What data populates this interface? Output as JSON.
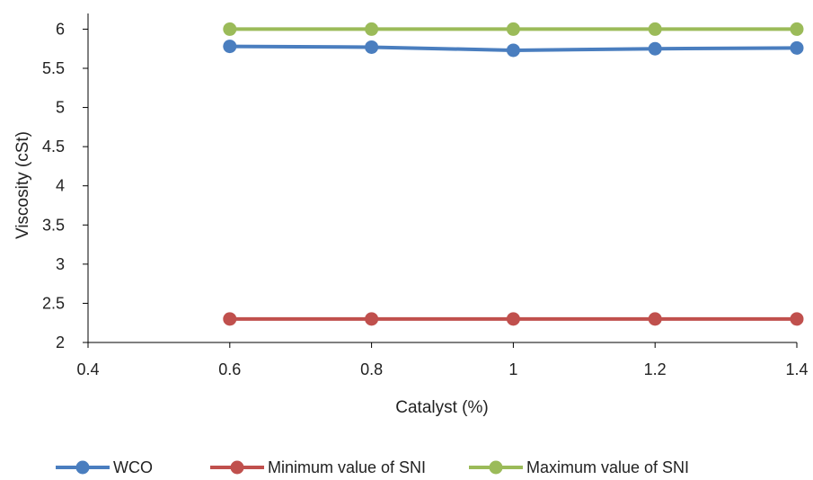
{
  "chart_data": {
    "type": "line",
    "title": "",
    "xlabel": "Catalyst (%)",
    "ylabel": "Viscosity (cSt)",
    "xlim": [
      0.4,
      1.4
    ],
    "ylim": [
      2,
      6.2
    ],
    "xticks": [
      0.4,
      0.6,
      0.8,
      1.0,
      1.2,
      1.4
    ],
    "xtick_labels": [
      "0.4",
      "0.6",
      "0.8",
      "1",
      "1.2",
      "1.4"
    ],
    "yticks": [
      2,
      2.5,
      3,
      3.5,
      4,
      4.5,
      5,
      5.5,
      6
    ],
    "ytick_labels": [
      "2",
      "2.5",
      "3",
      "3.5",
      "4",
      "4.5",
      "5",
      "5.5",
      "6"
    ],
    "grid": false,
    "legend_position": "bottom",
    "x": [
      0.6,
      0.8,
      1.0,
      1.2,
      1.4
    ],
    "series": [
      {
        "name": "WCO",
        "color": "#4a7ebf",
        "values": [
          5.78,
          5.77,
          5.73,
          5.75,
          5.76
        ]
      },
      {
        "name": "Minimum value of SNI",
        "color": "#c0504d",
        "values": [
          2.3,
          2.3,
          2.3,
          2.3,
          2.3
        ]
      },
      {
        "name": "Maximum value of SNI",
        "color": "#9bbb59",
        "values": [
          6.0,
          6.0,
          6.0,
          6.0,
          6.0
        ]
      }
    ]
  }
}
